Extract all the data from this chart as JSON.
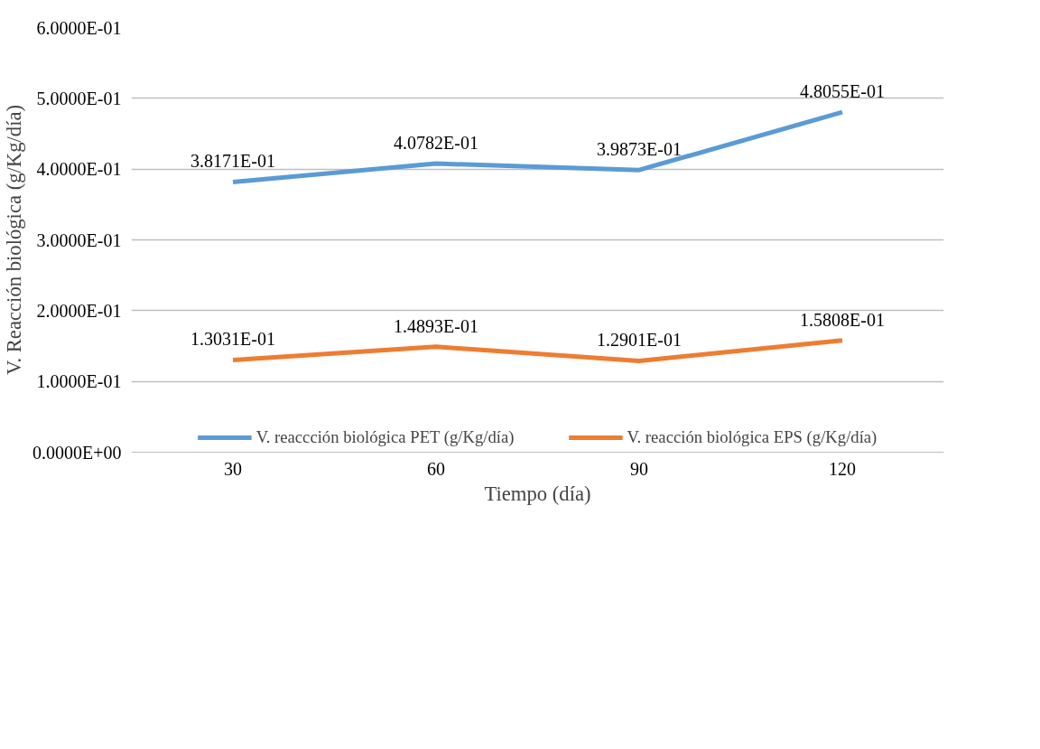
{
  "chart_data": {
    "type": "line",
    "xlabel": "Tiempo (día)",
    "ylabel": "V. Reacción biológica (g/Kg/día)",
    "categories": [
      "30",
      "60",
      "90",
      "120"
    ],
    "series": [
      {
        "name": "V. reaccción biológica PET (g/Kg/día)",
        "color": "#5b9bd5",
        "values": [
          0.38171,
          0.40782,
          0.39873,
          0.48055
        ],
        "value_labels": [
          "3.8171E-01",
          "4.0782E-01",
          "3.9873E-01",
          "4.8055E-01"
        ]
      },
      {
        "name": "V. reacción biológica EPS (g/Kg/día)",
        "color": "#ed7d31",
        "values": [
          0.13031,
          0.14893,
          0.12901,
          0.15808
        ],
        "value_labels": [
          "1.3031E-01",
          "1.4893E-01",
          "1.2901E-01",
          "1.5808E-01"
        ]
      }
    ],
    "ylim": [
      0,
      0.6
    ],
    "yticks": [
      {
        "value": 0,
        "label": "0.0000E+00"
      },
      {
        "value": 0.1,
        "label": "1.0000E-01"
      },
      {
        "value": 0.2,
        "label": "2.0000E-01"
      },
      {
        "value": 0.3,
        "label": "3.0000E-01"
      },
      {
        "value": 0.4,
        "label": "4.0000E-01"
      },
      {
        "value": 0.5,
        "label": "5.0000E-01"
      },
      {
        "value": 0.6,
        "label": "6.0000E-01"
      }
    ],
    "grid": "y",
    "legend": "bottom",
    "marker": "none",
    "line_style": "solid"
  }
}
